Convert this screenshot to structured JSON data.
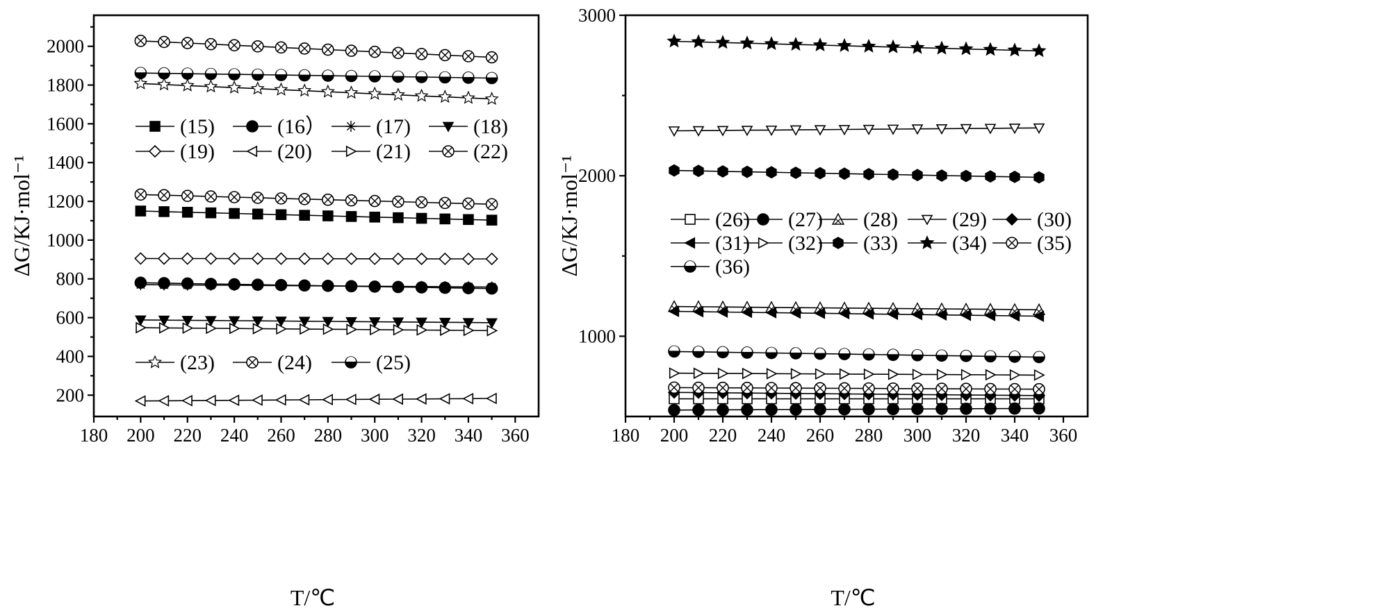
{
  "chart_data": [
    {
      "type": "line",
      "xlabel": "T/℃",
      "ylabel": "ΔG/KJ·mol⁻¹",
      "xlim": [
        180,
        370
      ],
      "ylim": [
        90,
        2160
      ],
      "xticks": [
        180,
        200,
        220,
        240,
        260,
        280,
        300,
        320,
        340,
        360
      ],
      "yticks": [
        200,
        400,
        600,
        800,
        1000,
        1200,
        1400,
        1600,
        1800,
        2000
      ],
      "grid": false,
      "x": [
        200,
        210,
        220,
        230,
        240,
        250,
        260,
        270,
        280,
        290,
        300,
        310,
        320,
        330,
        340,
        350
      ],
      "legends": [
        {
          "rows": [
            [
              "(15)",
              "(16)",
              "(17)",
              "(18)"
            ],
            [
              "(19)",
              "(20)",
              "(21)",
              "(22)"
            ]
          ]
        },
        {
          "rows": [
            [
              "(23)",
              "(24)",
              "(25)"
            ]
          ]
        }
      ],
      "series": [
        {
          "name": "(15)",
          "marker": "square-filled",
          "start": 1150,
          "end": 1103
        },
        {
          "name": "(16)",
          "label_text": "(16）",
          "marker": "circle-filled",
          "start": 780,
          "end": 750
        },
        {
          "name": "(17)",
          "marker": "asterisk",
          "start": 770,
          "end": 758
        },
        {
          "name": "(18)",
          "marker": "triangle-down-filled",
          "start": 588,
          "end": 574
        },
        {
          "name": "(19)",
          "marker": "diamond-open",
          "start": 905,
          "end": 903
        },
        {
          "name": "(20)",
          "marker": "triangle-left-open",
          "start": 170,
          "end": 183
        },
        {
          "name": "(21)",
          "marker": "triangle-right-open",
          "start": 548,
          "end": 533
        },
        {
          "name": "(22)",
          "marker": "circle-cross",
          "start": 1235,
          "end": 1185
        },
        {
          "name": "(23)",
          "marker": "star-open",
          "start": 1808,
          "end": 1728
        },
        {
          "name": "(24)",
          "marker": "circle-cross",
          "start": 2028,
          "end": 1943
        },
        {
          "name": "(25)",
          "marker": "sphere",
          "start": 1862,
          "end": 1836
        }
      ]
    },
    {
      "type": "line",
      "xlabel": "T/℃",
      "ylabel": "ΔG/KJ·mol⁻¹",
      "xlim": [
        180,
        370
      ],
      "ylim": [
        500,
        3000
      ],
      "xticks": [
        180,
        200,
        220,
        240,
        260,
        280,
        300,
        320,
        340,
        360
      ],
      "yticks": [
        1000,
        2000,
        3000
      ],
      "minor_yticks": [
        1500,
        2500
      ],
      "grid": false,
      "x": [
        200,
        210,
        220,
        230,
        240,
        250,
        260,
        270,
        280,
        290,
        300,
        310,
        320,
        330,
        340,
        350
      ],
      "legends": [
        {
          "rows": [
            [
              "(26)",
              "(27)",
              "(28)",
              "(29)",
              "(30)"
            ],
            [
              "(31)",
              "(32)",
              "(33)",
              "(34)",
              "(35)"
            ],
            [
              "(36)"
            ]
          ]
        }
      ],
      "series": [
        {
          "name": "(26)",
          "marker": "square-open",
          "start": 610,
          "end": 610
        },
        {
          "name": "(27)",
          "marker": "circle-filled",
          "start": 540,
          "end": 550
        },
        {
          "name": "(28)",
          "marker": "triangle-cross",
          "start": 1185,
          "end": 1165
        },
        {
          "name": "(29)",
          "marker": "triangle-down-open",
          "start": 2280,
          "end": 2298
        },
        {
          "name": "(30)",
          "marker": "diamond-filled",
          "start": 650,
          "end": 630
        },
        {
          "name": "(31)",
          "marker": "triangle-left-filled",
          "start": 1155,
          "end": 1125
        },
        {
          "name": "(32)",
          "marker": "triangle-right-open",
          "start": 770,
          "end": 758
        },
        {
          "name": "(33)",
          "marker": "hexagon-filled",
          "start": 2033,
          "end": 1990
        },
        {
          "name": "(34)",
          "marker": "star-filled",
          "start": 2838,
          "end": 2778
        },
        {
          "name": "(35)",
          "marker": "circle-cross",
          "start": 680,
          "end": 670
        },
        {
          "name": "(36)",
          "marker": "sphere",
          "start": 905,
          "end": 870
        }
      ]
    }
  ]
}
